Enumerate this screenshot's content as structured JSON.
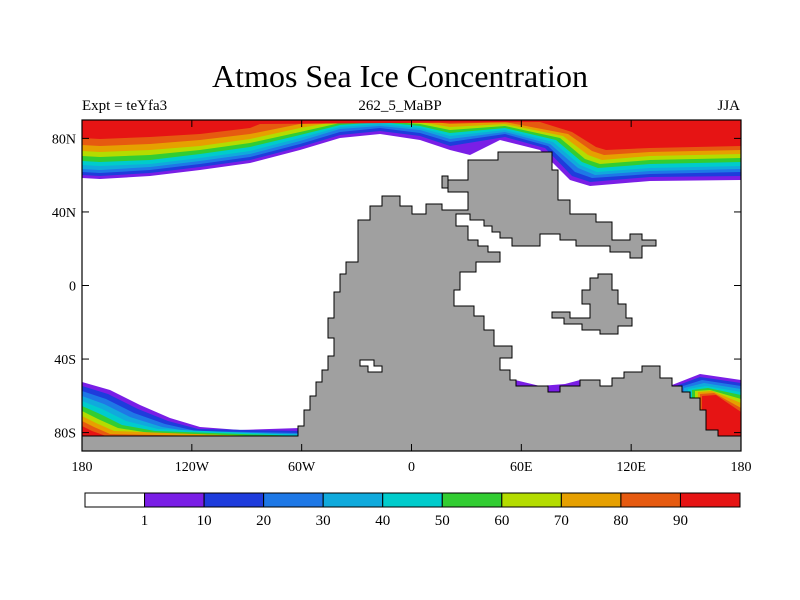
{
  "chart_data": {
    "type": "heatmap",
    "title": "Atmos Sea Ice Concentration",
    "subtitle_left": "Expt = teYfa3",
    "subtitle_center": "262_5_MaBP",
    "subtitle_right": "JJA",
    "x_ticks": [
      {
        "value": -180,
        "label": "180"
      },
      {
        "value": -120,
        "label": "120W"
      },
      {
        "value": -60,
        "label": "60W"
      },
      {
        "value": 0,
        "label": "0"
      },
      {
        "value": 60,
        "label": "60E"
      },
      {
        "value": 120,
        "label": "120E"
      },
      {
        "value": 180,
        "label": "180"
      }
    ],
    "y_ticks": [
      {
        "value": 80,
        "label": "80N"
      },
      {
        "value": 40,
        "label": "40N"
      },
      {
        "value": 0,
        "label": "0"
      },
      {
        "value": -40,
        "label": "40S"
      },
      {
        "value": -80,
        "label": "80S"
      }
    ],
    "xlim": [
      -180,
      180
    ],
    "ylim": [
      -90,
      90
    ],
    "units": "%",
    "colorbar": {
      "levels": [
        "1",
        "10",
        "20",
        "30",
        "40",
        "50",
        "60",
        "70",
        "80",
        "90"
      ],
      "colors": [
        "#ffffff",
        "#7a1ee6",
        "#1e3cdc",
        "#1e78e6",
        "#10aadc",
        "#00cccc",
        "#32cd32",
        "#b4dc00",
        "#e6a000",
        "#e65a10",
        "#e61414"
      ]
    },
    "land_color": "#a0a0a0"
  }
}
